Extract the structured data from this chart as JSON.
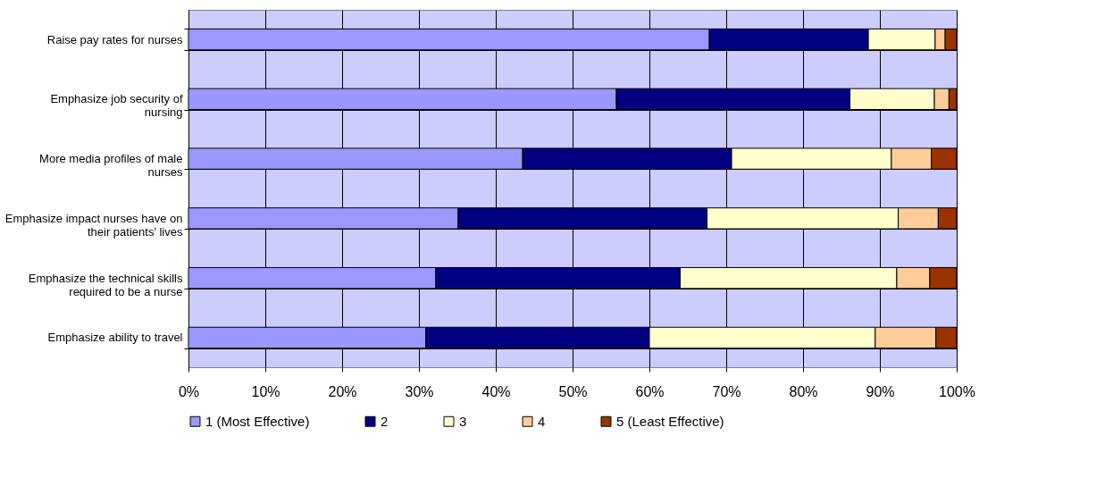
{
  "chart_data": {
    "type": "bar",
    "orientation": "horizontal",
    "stacked": true,
    "categories": [
      "Raise pay rates for nurses",
      "Emphasize job security of nursing",
      "More media profiles of male nurses",
      "Emphasize impact nurses have on their patients' lives",
      "Emphasize the technical skills required to be a nurse",
      "Emphasize ability to travel"
    ],
    "series": [
      {
        "name": "1 (Most Effective)",
        "color": "#9999ff",
        "values": [
          67.8,
          55.7,
          43.5,
          35.1,
          32.2,
          30.9
        ]
      },
      {
        "name": "2",
        "color": "#000080",
        "values": [
          20.7,
          30.4,
          27.2,
          32.4,
          31.8,
          29.1
        ]
      },
      {
        "name": "3",
        "color": "#ffffcc",
        "values": [
          8.7,
          11.0,
          20.8,
          24.9,
          28.2,
          29.4
        ]
      },
      {
        "name": "4",
        "color": "#ffcc99",
        "values": [
          1.3,
          1.9,
          5.2,
          5.2,
          4.3,
          7.9
        ]
      },
      {
        "name": "5 (Least Effective)",
        "color": "#993300",
        "values": [
          1.5,
          1.0,
          3.3,
          2.4,
          3.5,
          2.7
        ]
      }
    ],
    "xlim": [
      0,
      100
    ],
    "xticks": [
      {
        "value": 0,
        "label": "0%"
      },
      {
        "value": 10,
        "label": "10%"
      },
      {
        "value": 20,
        "label": "20%"
      },
      {
        "value": 30,
        "label": "30%"
      },
      {
        "value": 40,
        "label": "40%"
      },
      {
        "value": 50,
        "label": "50%"
      },
      {
        "value": 60,
        "label": "60%"
      },
      {
        "value": 70,
        "label": "70%"
      },
      {
        "value": 80,
        "label": "80%"
      },
      {
        "value": 90,
        "label": "90%"
      },
      {
        "value": 100,
        "label": "100%"
      }
    ],
    "grid": true,
    "legend": "bottom"
  }
}
